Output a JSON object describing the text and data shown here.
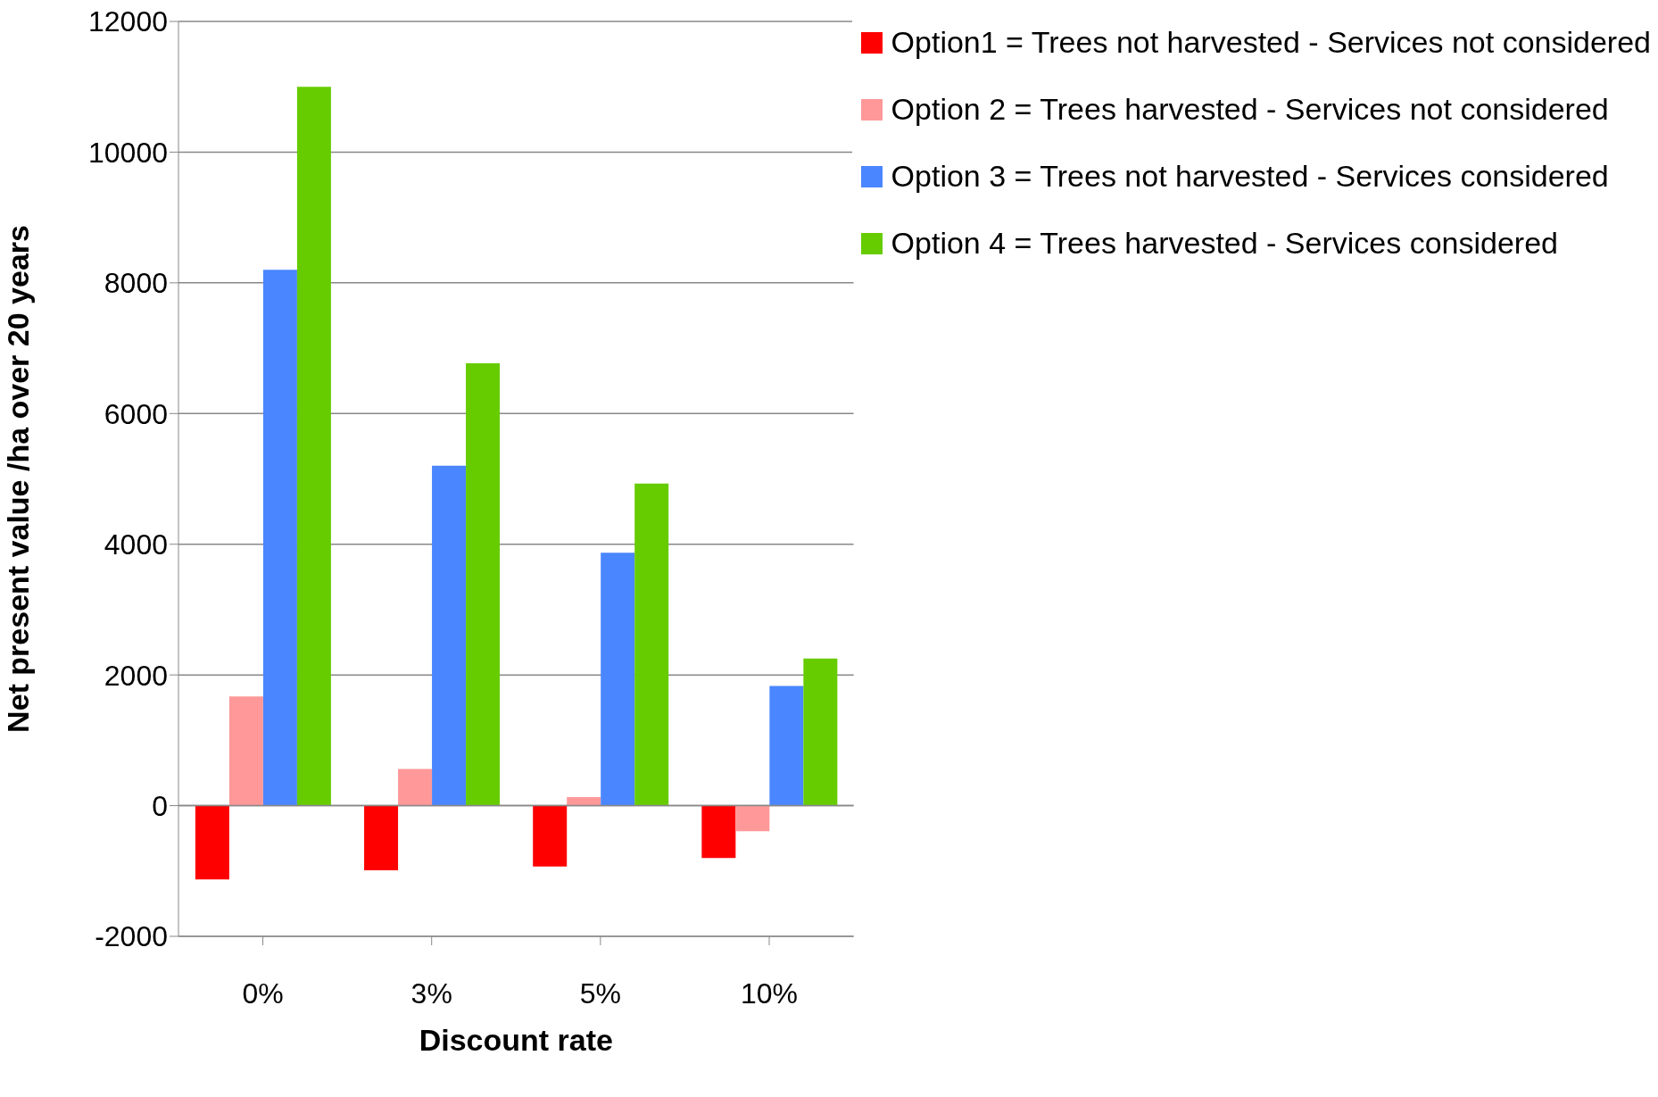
{
  "chart_data": {
    "type": "bar",
    "xlabel": "Discount rate",
    "ylabel": "Net present value  /ha over 20 years",
    "categories": [
      "0%",
      "3%",
      "5%",
      "10%"
    ],
    "series": [
      {
        "name": "Option1 = Trees not harvested - Services not considered",
        "color": "#ff0000",
        "values": [
          -1130,
          -990,
          -930,
          -800
        ]
      },
      {
        "name": "Option 2 = Trees harvested - Services not considered",
        "color": "#ff9999",
        "values": [
          1670,
          560,
          130,
          -390
        ]
      },
      {
        "name": "Option 3 = Trees not harvested - Services considered",
        "color": "#4a86ff",
        "values": [
          8200,
          5200,
          3870,
          1830
        ]
      },
      {
        "name": "Option 4 = Trees harvested - Services considered",
        "color": "#66cc00",
        "values": [
          11000,
          6770,
          4930,
          2250
        ]
      }
    ],
    "ylim": [
      -2000,
      12000
    ],
    "yticks": [
      -2000,
      0,
      2000,
      4000,
      6000,
      8000,
      10000,
      12000
    ],
    "grid": "y",
    "legend": "top right"
  }
}
